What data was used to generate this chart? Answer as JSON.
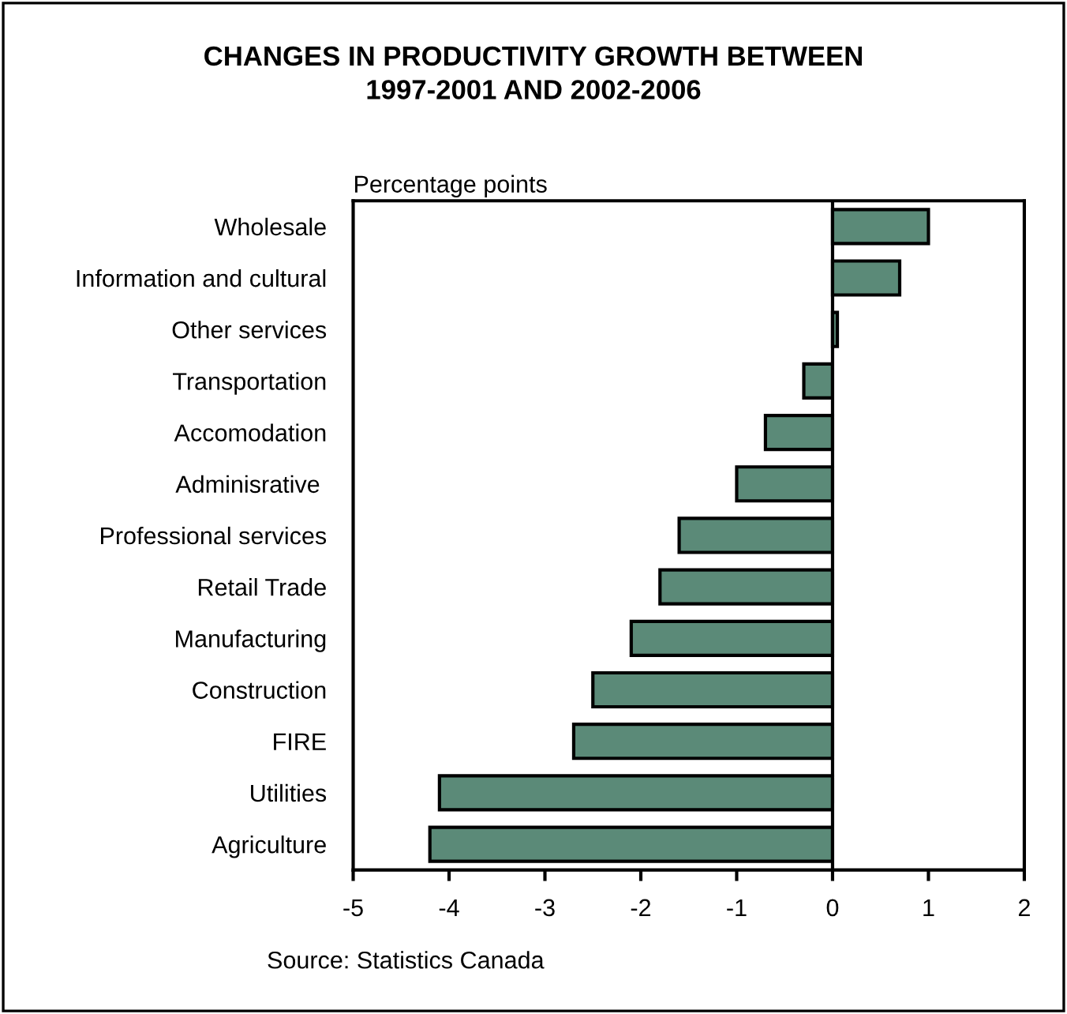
{
  "chart_data": {
    "type": "bar",
    "orientation": "horizontal",
    "title": "CHANGES IN PRODUCTIVITY GROWTH BETWEEN\n1997-2001 AND 2002-2006",
    "xlabel": "Percentage points",
    "categories": [
      "Wholesale",
      "Information and cultural",
      "Other services",
      "Transportation",
      "Accomodation",
      "Adminisrative ",
      "Professional services",
      "Retail Trade",
      "Manufacturing",
      "Construction",
      "FIRE",
      "Utilities",
      "Agriculture"
    ],
    "values": [
      1.0,
      0.7,
      0.05,
      -0.3,
      -0.7,
      -1.0,
      -1.6,
      -1.8,
      -2.1,
      -2.5,
      -2.7,
      -4.1,
      -4.2
    ],
    "color": "#5b8a78",
    "xlim": [
      -5,
      2
    ],
    "xticks": [
      {
        "value": -5,
        "label": "-5"
      },
      {
        "value": -4,
        "label": "-4"
      },
      {
        "value": -3,
        "label": "-3"
      },
      {
        "value": -2,
        "label": "-2"
      },
      {
        "value": -1,
        "label": "-1"
      },
      0,
      1,
      2
    ],
    "grid": false,
    "legend": false,
    "ref_lines": [
      {
        "axis": "x",
        "value": 0,
        "color": "#000000"
      }
    ],
    "annotations": [
      "Source: Statistics Canada"
    ]
  }
}
